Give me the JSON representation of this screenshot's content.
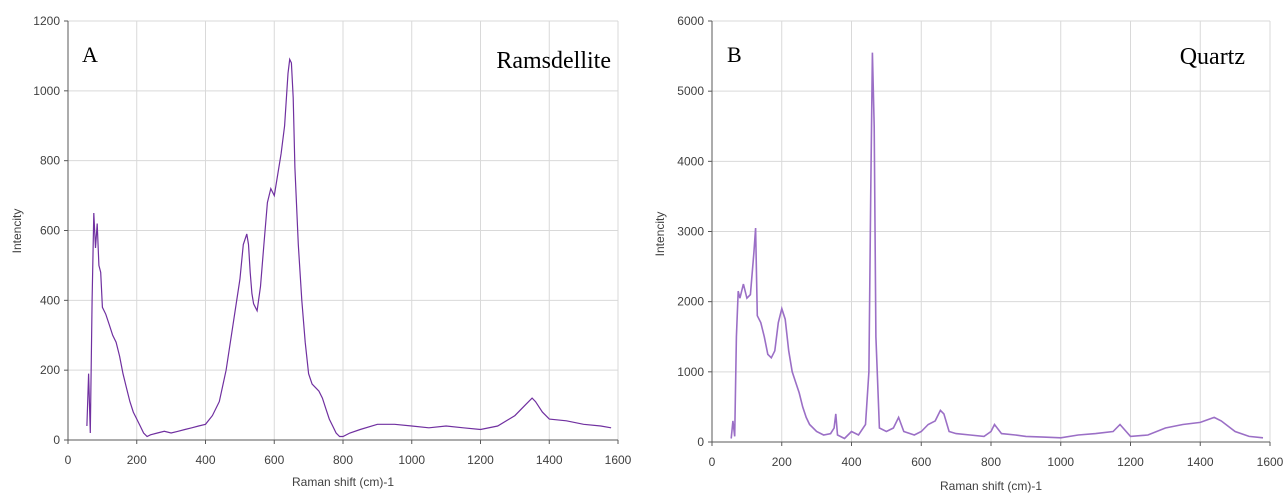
{
  "chart_data": [
    {
      "type": "line",
      "panel_label": "A",
      "title": "Ramsdellite",
      "xlabel": "Raman shift (cm)-1",
      "ylabel": "Intencity",
      "xlim": [
        0,
        1600
      ],
      "ylim": [
        0,
        1200
      ],
      "xticks": [
        0,
        200,
        400,
        600,
        800,
        1000,
        1200,
        1400,
        1600
      ],
      "yticks": [
        0,
        200,
        400,
        600,
        800,
        1000,
        1200
      ],
      "grid": true,
      "color": "#7030a0",
      "x": [
        55,
        60,
        65,
        70,
        75,
        80,
        85,
        90,
        95,
        100,
        110,
        120,
        130,
        140,
        150,
        160,
        170,
        180,
        190,
        200,
        210,
        220,
        230,
        240,
        260,
        280,
        300,
        320,
        340,
        360,
        380,
        400,
        420,
        440,
        460,
        480,
        500,
        510,
        520,
        525,
        530,
        535,
        540,
        550,
        560,
        570,
        580,
        590,
        600,
        610,
        620,
        630,
        640,
        645,
        650,
        655,
        660,
        670,
        680,
        690,
        700,
        710,
        720,
        730,
        740,
        750,
        760,
        770,
        780,
        790,
        800,
        820,
        850,
        900,
        950,
        1000,
        1050,
        1100,
        1150,
        1200,
        1250,
        1300,
        1330,
        1350,
        1360,
        1380,
        1400,
        1450,
        1500,
        1550,
        1580
      ],
      "y": [
        40,
        190,
        20,
        400,
        650,
        550,
        620,
        500,
        480,
        380,
        360,
        330,
        300,
        280,
        240,
        190,
        150,
        110,
        80,
        60,
        40,
        20,
        10,
        15,
        20,
        25,
        20,
        25,
        30,
        35,
        40,
        45,
        70,
        110,
        200,
        330,
        460,
        560,
        590,
        560,
        480,
        420,
        390,
        370,
        440,
        560,
        680,
        720,
        700,
        760,
        820,
        900,
        1050,
        1090,
        1080,
        980,
        780,
        560,
        400,
        280,
        190,
        160,
        150,
        140,
        120,
        90,
        60,
        40,
        20,
        10,
        10,
        20,
        30,
        45,
        45,
        40,
        35,
        40,
        35,
        30,
        40,
        70,
        100,
        120,
        110,
        80,
        60,
        55,
        45,
        40,
        35
      ]
    },
    {
      "type": "line",
      "panel_label": "B",
      "title": "Quartz",
      "xlabel": "Raman shift (cm)-1",
      "ylabel": "Intencity",
      "xlim": [
        0,
        1600
      ],
      "ylim": [
        0,
        6000
      ],
      "xticks": [
        0,
        200,
        400,
        600,
        800,
        1000,
        1200,
        1400,
        1600
      ],
      "yticks": [
        0,
        1000,
        2000,
        3000,
        4000,
        5000,
        6000
      ],
      "grid": true,
      "color": "#9b6fc6",
      "x": [
        55,
        60,
        65,
        70,
        75,
        80,
        90,
        100,
        110,
        120,
        125,
        130,
        140,
        150,
        160,
        170,
        180,
        190,
        200,
        210,
        220,
        230,
        240,
        250,
        260,
        270,
        280,
        300,
        320,
        340,
        350,
        355,
        360,
        380,
        400,
        420,
        440,
        450,
        455,
        460,
        465,
        470,
        480,
        500,
        520,
        535,
        550,
        580,
        600,
        620,
        640,
        655,
        665,
        680,
        700,
        740,
        780,
        800,
        810,
        830,
        870,
        900,
        950,
        1000,
        1050,
        1100,
        1150,
        1170,
        1200,
        1250,
        1300,
        1350,
        1400,
        1440,
        1460,
        1500,
        1540,
        1580
      ],
      "y": [
        50,
        300,
        80,
        1500,
        2150,
        2050,
        2250,
        2050,
        2100,
        2700,
        3050,
        1800,
        1700,
        1500,
        1250,
        1200,
        1300,
        1700,
        1900,
        1750,
        1300,
        1000,
        850,
        700,
        500,
        350,
        250,
        150,
        100,
        120,
        200,
        400,
        100,
        50,
        150,
        100,
        250,
        1000,
        3500,
        5550,
        4500,
        1500,
        200,
        150,
        200,
        350,
        150,
        100,
        150,
        250,
        300,
        450,
        400,
        150,
        120,
        100,
        80,
        150,
        250,
        120,
        100,
        80,
        70,
        60,
        100,
        120,
        150,
        250,
        80,
        100,
        200,
        250,
        280,
        350,
        300,
        150,
        80,
        60
      ]
    }
  ]
}
